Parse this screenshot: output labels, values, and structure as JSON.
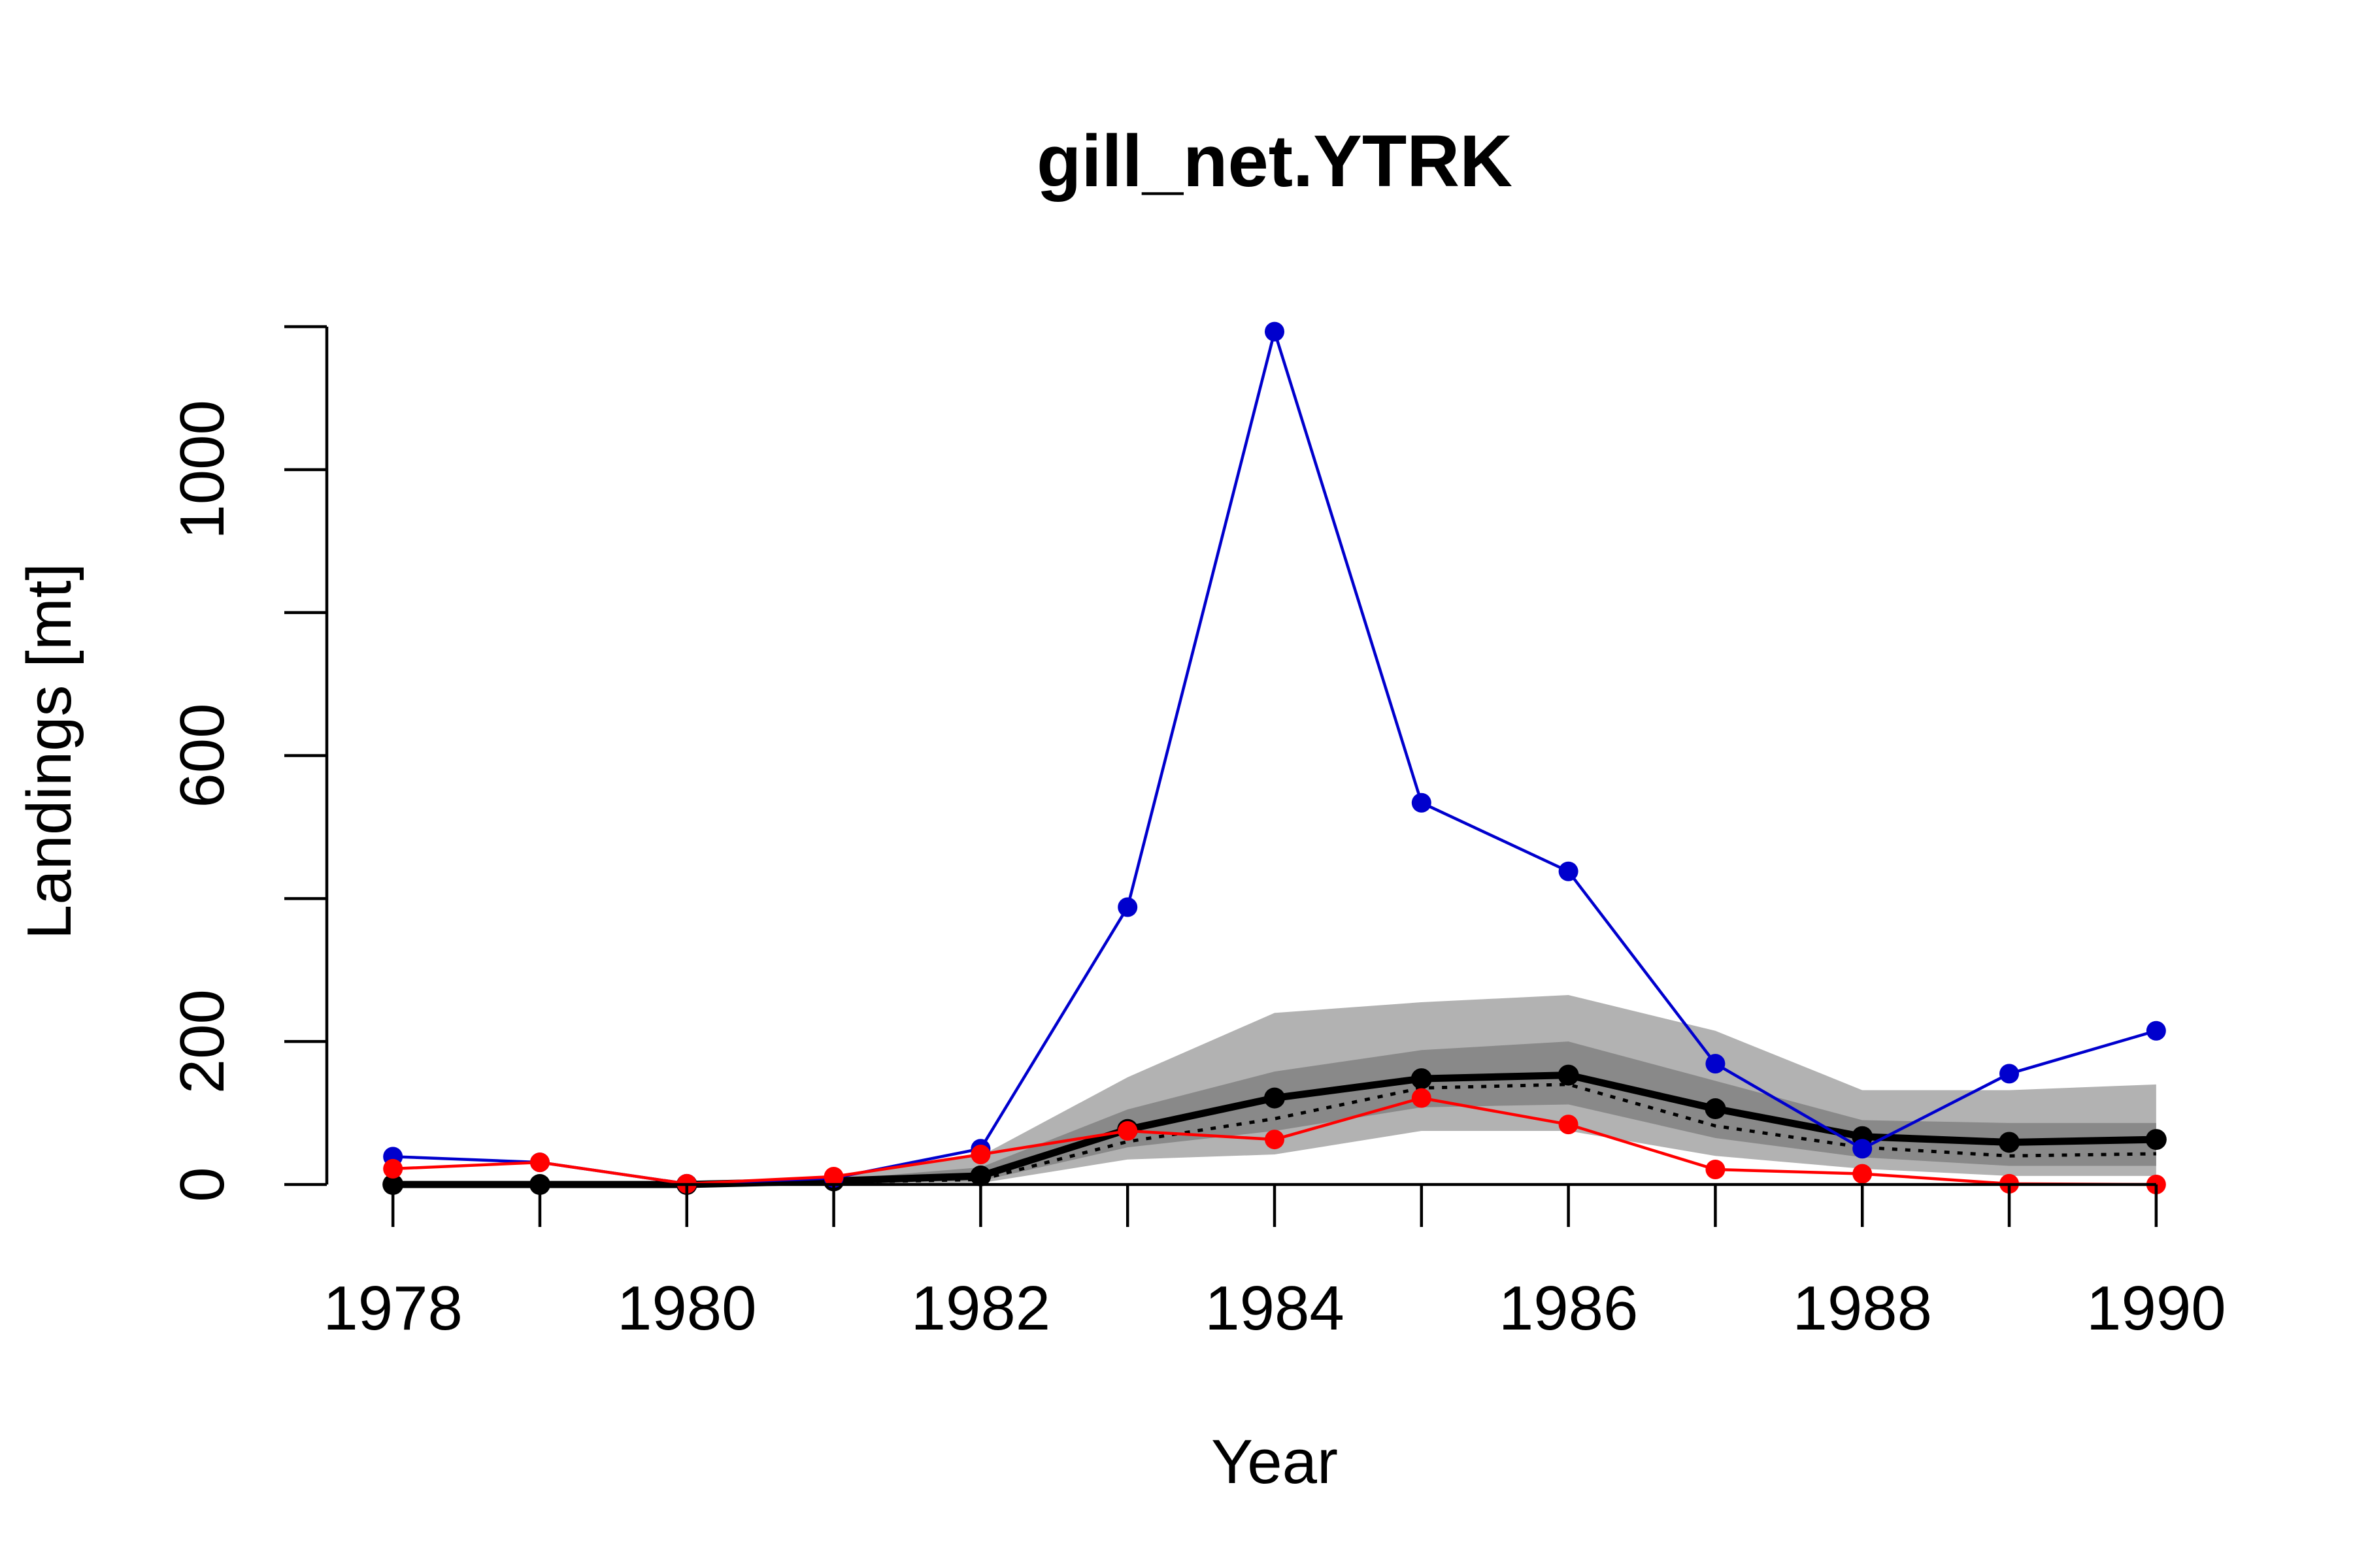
{
  "chart_data": {
    "type": "line",
    "title": "gill_net.YTRK",
    "xlabel": "Year",
    "ylabel": "Landings [mt]",
    "x": [
      1978,
      1979,
      1980,
      1981,
      1982,
      1983,
      1984,
      1985,
      1986,
      1987,
      1988,
      1989,
      1990
    ],
    "xlim": [
      1977.55,
      1990.45
    ],
    "ylim": [
      0,
      1200
    ],
    "xticks": [
      1978,
      1980,
      1982,
      1984,
      1986,
      1988,
      1990
    ],
    "yticks": [
      0,
      200,
      400,
      600,
      800,
      1000,
      1200
    ],
    "ytick_labels": [
      "0",
      "200",
      "",
      "600",
      "",
      "1000",
      ""
    ],
    "series": [
      {
        "color": "#0000CD",
        "style": "line-points",
        "values": [
          39,
          31,
          1,
          9,
          50,
          388,
          1193,
          534,
          438,
          169,
          50,
          155,
          215
        ]
      },
      {
        "color": "#FF0000",
        "style": "line-points",
        "values": [
          22,
          31,
          1,
          11,
          42,
          75,
          63,
          121,
          84,
          21,
          15,
          1,
          0
        ]
      },
      {
        "color": "#000000",
        "style": "line-points-thick",
        "values": [
          0,
          0,
          0,
          5,
          12,
          77,
          121,
          148,
          153,
          106,
          67,
          59,
          63
        ]
      },
      {
        "color": "#000000",
        "style": "dotted",
        "values": [
          0,
          0,
          0,
          3,
          7,
          60,
          92,
          135,
          140,
          82,
          52,
          40,
          43
        ]
      }
    ],
    "bands": [
      {
        "color": "#B2B2B2",
        "lower": [
          0,
          0,
          0,
          1,
          2,
          35,
          42,
          75,
          75,
          40,
          22,
          12,
          12
        ],
        "upper": [
          0,
          0,
          0,
          10,
          40,
          150,
          240,
          255,
          265,
          215,
          132,
          132,
          140
        ]
      },
      {
        "color": "#898989",
        "lower": [
          0,
          0,
          0,
          2,
          5,
          52,
          75,
          108,
          112,
          65,
          38,
          26,
          26
        ],
        "upper": [
          0,
          0,
          0,
          7,
          24,
          105,
          158,
          188,
          200,
          145,
          90,
          86,
          86
        ]
      }
    ],
    "grid": false,
    "legend": "none"
  }
}
